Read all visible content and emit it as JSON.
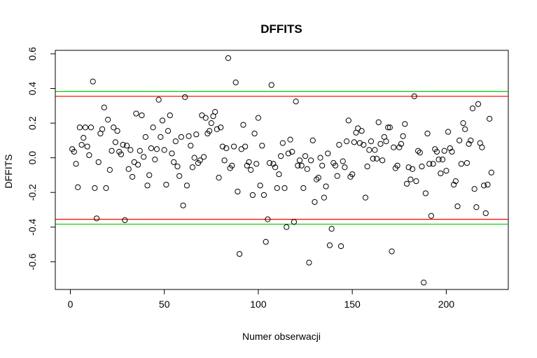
{
  "chart_data": {
    "type": "scatter",
    "title": "DFFITS",
    "xlabel": "Numer obserwacji",
    "ylabel": "DFFITS",
    "xlim": [
      -8,
      233
    ],
    "ylim": [
      -0.76,
      0.62
    ],
    "xticks": [
      0,
      50,
      100,
      150,
      200
    ],
    "yticks": [
      -0.6,
      -0.4,
      -0.2,
      0.0,
      0.2,
      0.4,
      0.6
    ],
    "ytick_labels": [
      "-0.6",
      "-0.4",
      "-0.2",
      "0.0",
      "0.2",
      "0.4",
      "0.6"
    ],
    "grid": false,
    "marker": "open-circle",
    "reference_lines": [
      {
        "y": 0.355,
        "color": "#ff0000"
      },
      {
        "y": -0.355,
        "color": "#ff0000"
      },
      {
        "y": 0.383,
        "color": "#00cc00"
      },
      {
        "y": -0.383,
        "color": "#00cc00"
      }
    ],
    "series": [
      {
        "x": [
          1,
          2,
          3,
          4,
          5,
          6,
          7,
          8,
          9,
          10,
          11,
          12,
          13,
          14,
          15,
          16,
          17,
          18,
          19,
          20,
          21,
          22,
          23,
          24,
          25,
          26,
          27,
          28,
          29,
          30,
          31,
          32,
          33,
          34,
          35,
          36,
          37,
          38,
          39,
          40,
          41,
          42,
          43,
          44,
          45,
          46,
          47,
          48,
          49,
          50,
          51,
          52,
          53,
          54,
          55,
          56,
          57,
          58,
          59,
          60,
          61,
          62,
          63,
          64,
          65,
          66,
          67,
          68,
          69,
          70,
          71,
          72,
          73,
          74,
          75,
          76,
          77,
          78,
          79,
          80,
          81,
          82,
          83,
          84,
          85,
          86,
          87,
          88,
          89,
          90,
          91,
          92,
          93,
          94,
          95,
          96,
          97,
          98,
          99,
          100,
          101,
          102,
          103,
          104,
          105,
          106,
          107,
          108,
          109,
          110,
          111,
          112,
          113,
          114,
          115,
          116,
          117,
          118,
          119,
          120,
          121,
          122,
          123,
          124,
          125,
          126,
          127,
          128,
          129,
          130,
          131,
          132,
          133,
          134,
          135,
          136,
          137,
          138,
          139,
          140,
          141,
          142,
          143,
          144,
          145,
          146,
          147,
          148,
          149,
          150,
          151,
          152,
          153,
          154,
          155,
          156,
          157,
          158,
          159,
          160,
          161,
          162,
          163,
          164,
          165,
          166,
          167,
          168,
          169,
          170,
          171,
          172,
          173,
          174,
          175,
          176,
          177,
          178,
          179,
          180,
          181,
          182,
          183,
          184,
          185,
          186,
          187,
          188,
          189,
          190,
          191,
          192,
          193,
          194,
          195,
          196,
          197,
          198,
          199,
          200,
          201,
          202,
          203,
          204,
          205,
          206,
          207,
          208,
          209,
          210,
          211,
          212,
          213,
          214,
          215,
          216,
          217,
          218,
          219,
          220,
          221,
          222,
          223,
          224
        ],
        "y": [
          0.05,
          0.035,
          -0.035,
          -0.17,
          0.175,
          0.075,
          0.115,
          0.175,
          0.065,
          0.015,
          0.175,
          0.44,
          -0.175,
          -0.35,
          -0.025,
          0.14,
          0.165,
          0.29,
          -0.175,
          0.22,
          -0.07,
          0.04,
          0.175,
          0.09,
          0.155,
          0.035,
          0.02,
          0.075,
          -0.36,
          0.07,
          -0.065,
          0.045,
          -0.11,
          -0.025,
          0.255,
          -0.04,
          0.04,
          0.245,
          0.005,
          0.12,
          -0.16,
          -0.1,
          0.055,
          0.175,
          -0.01,
          0.05,
          0.335,
          0.12,
          0.215,
          0.045,
          -0.155,
          0.155,
          0.245,
          0.025,
          -0.025,
          0.095,
          -0.05,
          -0.105,
          0.12,
          -0.275,
          0.35,
          -0.16,
          0.125,
          0.07,
          -0.055,
          0.0,
          0.135,
          -0.03,
          -0.015,
          0.245,
          0.005,
          0.23,
          0.14,
          0.155,
          0.2,
          0.24,
          0.265,
          0.165,
          -0.115,
          0.175,
          0.065,
          -0.015,
          0.055,
          0.575,
          -0.06,
          -0.045,
          0.065,
          0.435,
          -0.195,
          -0.555,
          0.05,
          0.19,
          0.065,
          -0.045,
          -0.025,
          -0.07,
          -0.215,
          0.14,
          -0.035,
          0.23,
          -0.16,
          0.07,
          -0.215,
          -0.485,
          -0.355,
          -0.03,
          0.42,
          -0.035,
          -0.055,
          -0.175,
          -0.095,
          0.01,
          0.085,
          -0.175,
          -0.4,
          0.025,
          0.105,
          0.035,
          -0.37,
          0.325,
          -0.045,
          -0.015,
          -0.045,
          -0.175,
          0.01,
          -0.065,
          -0.605,
          -0.015,
          0.1,
          -0.255,
          -0.125,
          -0.115,
          0.0,
          -0.045,
          -0.23,
          -0.165,
          0.025,
          -0.505,
          -0.41,
          -0.03,
          -0.045,
          -0.105,
          0.075,
          -0.51,
          -0.02,
          -0.055,
          0.095,
          0.215,
          -0.11,
          -0.095,
          0.09,
          0.145,
          0.17,
          0.085,
          0.155,
          0.075,
          -0.23,
          -0.05,
          0.045,
          0.095,
          -0.005,
          0.045,
          -0.005,
          0.205,
          0.08,
          -0.015,
          0.12,
          0.095,
          0.175,
          0.175,
          -0.54,
          0.06,
          -0.06,
          -0.045,
          0.06,
          0.08,
          0.125,
          0.195,
          -0.15,
          -0.055,
          -0.125,
          -0.065,
          0.355,
          -0.135,
          0.04,
          0.03,
          -0.05,
          -0.72,
          -0.205,
          0.14,
          -0.035,
          -0.335,
          -0.035,
          0.05,
          0.035,
          -0.01,
          -0.09,
          -0.01,
          0.04,
          -0.075,
          0.15,
          0.055,
          0.035,
          -0.155,
          -0.135,
          -0.28,
          0.1,
          -0.035,
          0.2,
          0.165,
          -0.03,
          0.08,
          0.1,
          0.285,
          -0.18,
          -0.285,
          0.31,
          0.085,
          0.06,
          -0.16,
          -0.32,
          -0.155,
          0.225,
          -0.085
        ]
      }
    ]
  }
}
